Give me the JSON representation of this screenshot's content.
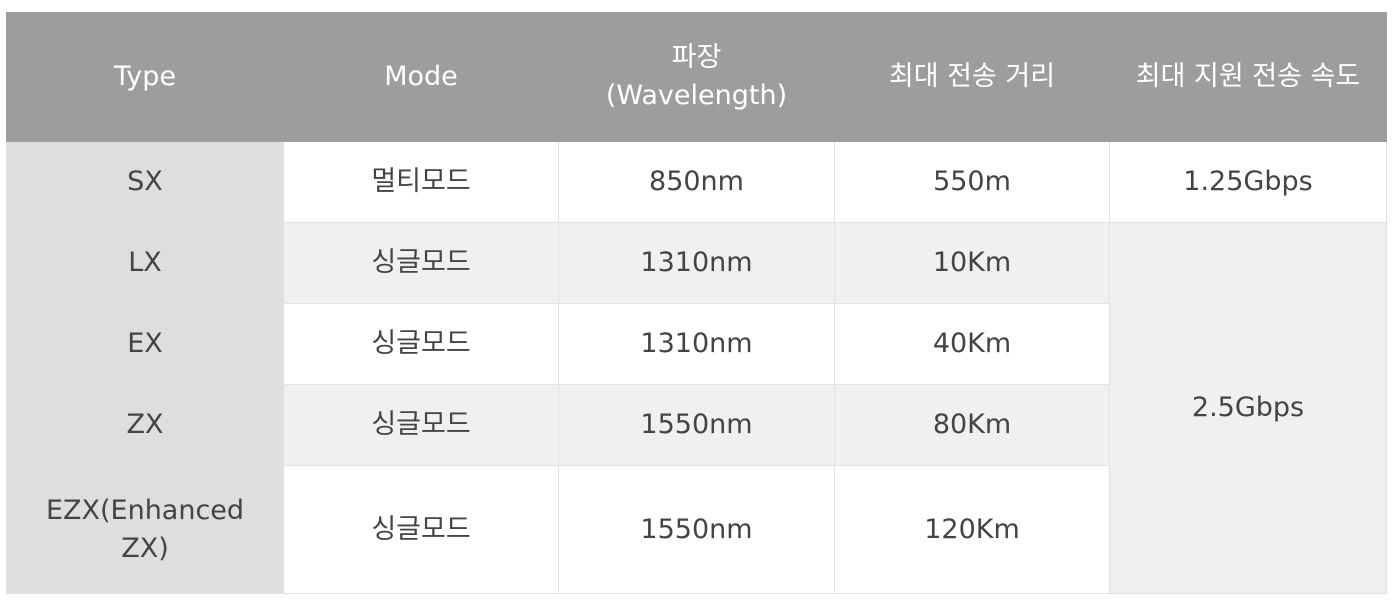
{
  "table": {
    "header": [
      "Type",
      "Mode",
      "파장\n(Wavelength)",
      "최대 전송 거리",
      "최대 지원 전송 속도"
    ],
    "rows": [
      [
        "SX",
        "멀티모드",
        "850nm",
        "550m",
        "1.25Gbps"
      ],
      [
        "LX",
        "싱글모드",
        "1310nm",
        "10Km",
        "2.5Gbps"
      ],
      [
        "EX",
        "싱글모드",
        "1310nm",
        "40Km"
      ],
      [
        "ZX",
        "싱글모드",
        "1550nm",
        "80Km"
      ],
      [
        "EZX(Enhanced ZX)",
        "싱글모드",
        "1550nm",
        "120Km"
      ]
    ]
  }
}
